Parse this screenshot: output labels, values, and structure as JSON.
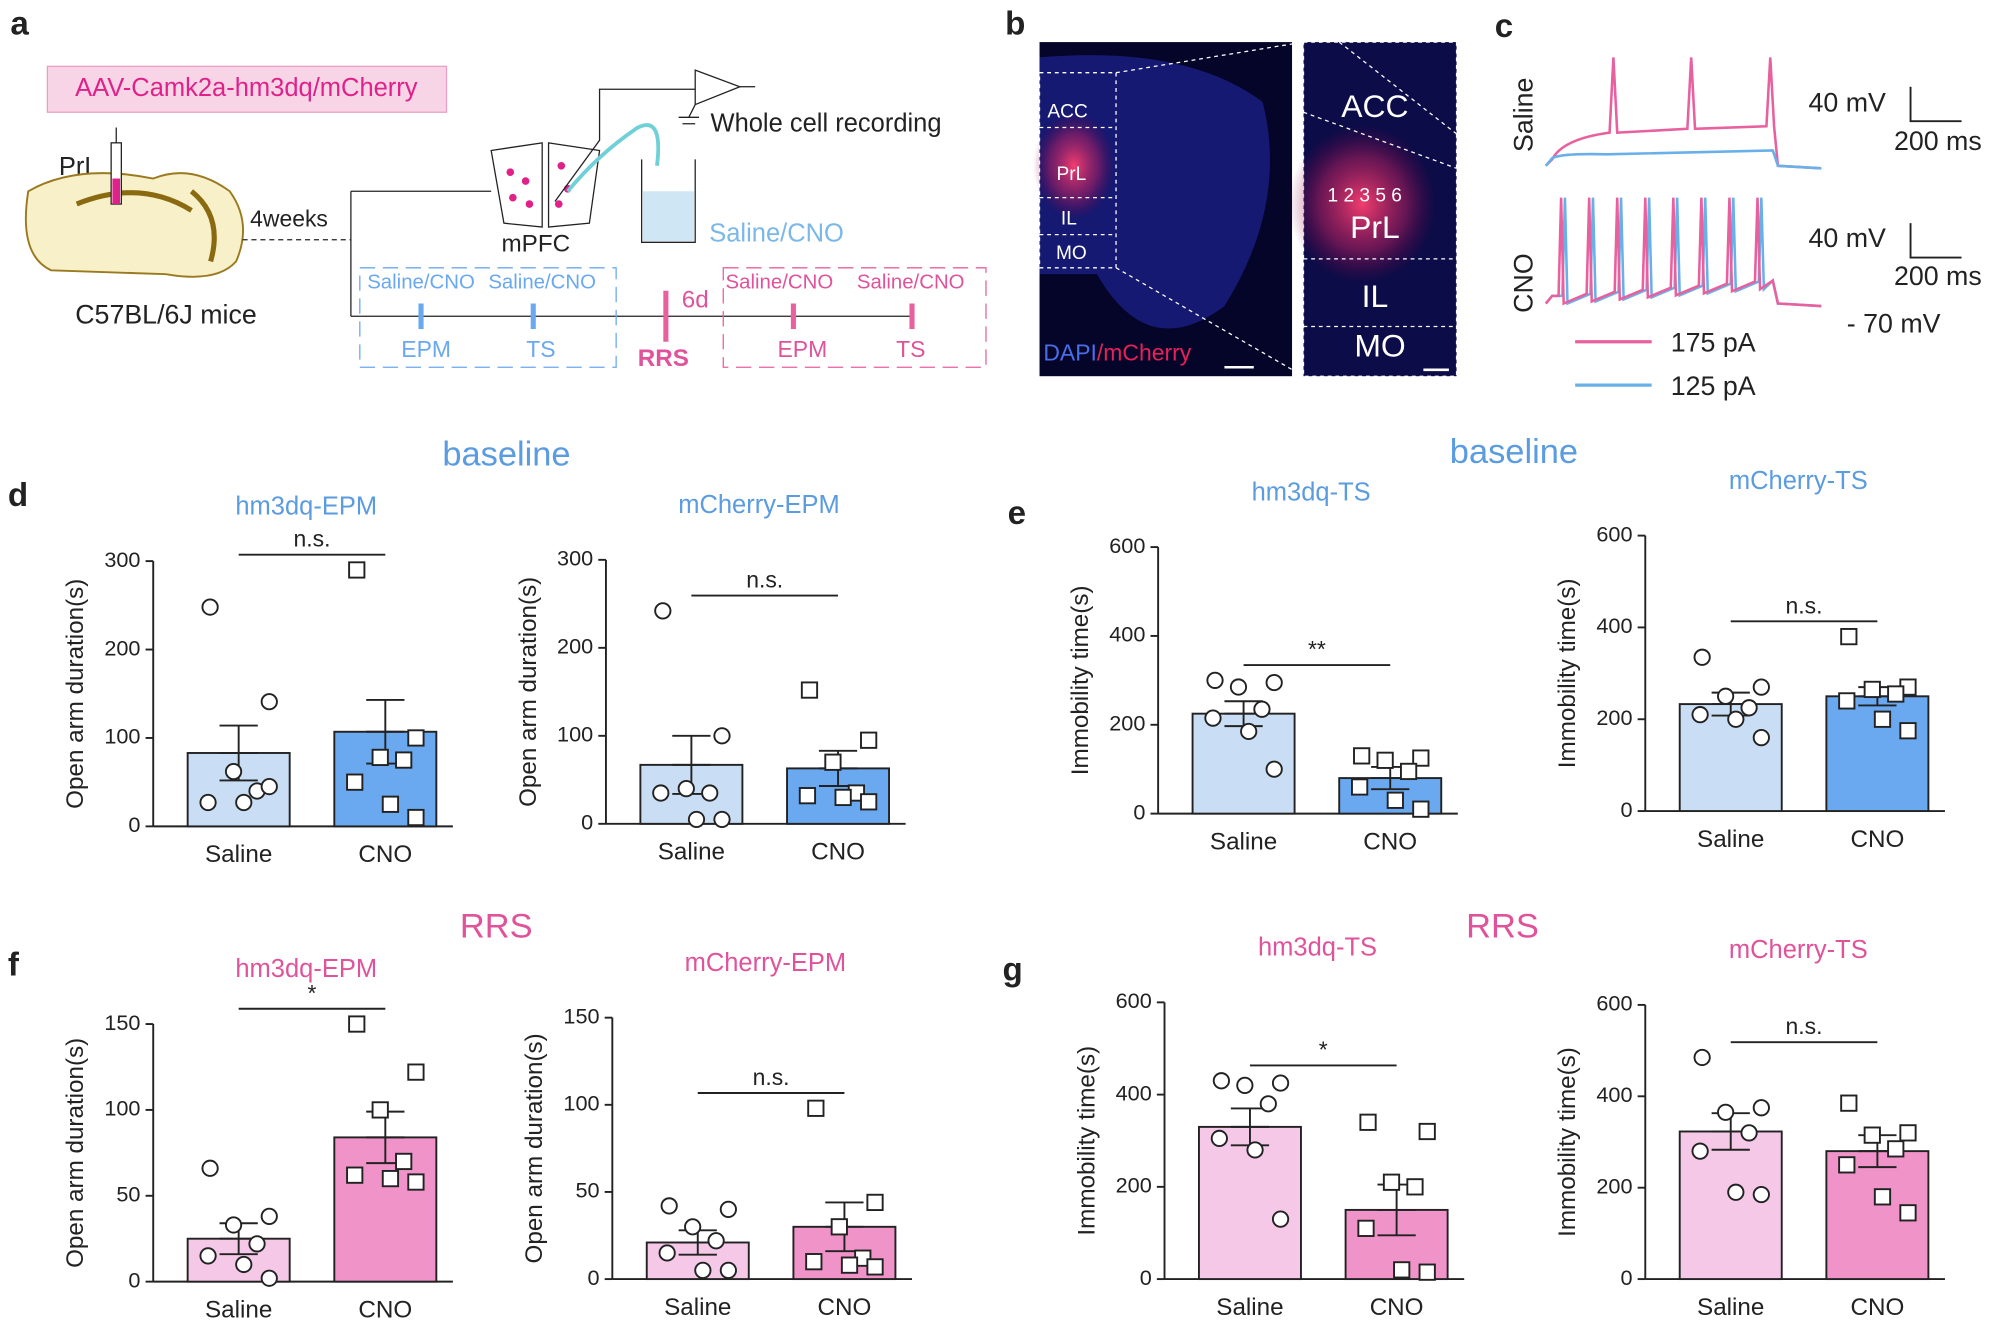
{
  "panel_labels": {
    "a": "a",
    "b": "b",
    "c": "c",
    "d": "d",
    "e": "e",
    "f": "f",
    "g": "g"
  },
  "sections": {
    "d": "baseline",
    "e": "baseline",
    "f": "RRS",
    "g": "RRS"
  },
  "panel_a": {
    "virus": "AAV-Camk2a-hm3dq/mCherry",
    "region": "PrL",
    "interval": "4weeks",
    "mice": "C57BL/6J mice",
    "slice": "mPFC",
    "recording": "Whole cell recording",
    "perfusion": "Saline/CNO",
    "baseline_treatments": [
      "Saline/CNO",
      "Saline/CNO"
    ],
    "baseline_tests": [
      "EPM",
      "TS"
    ],
    "gap": "6d",
    "stress": "RRS",
    "rrs_treatments": [
      "Saline/CNO",
      "Saline/CNO"
    ],
    "rrs_tests": [
      "EPM",
      "TS"
    ]
  },
  "panel_b": {
    "regions": [
      "ACC",
      "PrL",
      "IL",
      "MO"
    ],
    "inset_regions": [
      "ACC",
      "PrL",
      "IL",
      "MO"
    ],
    "layers": "1 2 3 5 6",
    "stain_dapi": "DAPI",
    "stain_mcherry": "/mCherry"
  },
  "panel_c": {
    "conditions": [
      "Saline",
      "CNO"
    ],
    "scale_voltage": [
      "40 mV",
      "40 mV"
    ],
    "scale_time": [
      "200 ms",
      "200 ms"
    ],
    "currents": [
      {
        "label": "175 pA",
        "color": "#e8609e"
      },
      {
        "label": "125 pA",
        "color": "#6ab0e8"
      }
    ],
    "resting": "- 70 mV"
  },
  "chart_data": [
    {
      "type": "bar",
      "title": "hm3dq-EPM",
      "ylabel": "Open arm duration(s)",
      "categories": [
        "Saline",
        "CNO"
      ],
      "values": [
        83,
        107
      ],
      "errors": [
        31,
        36
      ],
      "points": [
        [
          248,
          141,
          62,
          40,
          27,
          27,
          45
        ],
        [
          290,
          100,
          78,
          75,
          50,
          25,
          10
        ]
      ],
      "colors": [
        "#c9def5",
        "#6aa8f0"
      ],
      "title_color": "#5b9be0",
      "ylim": [
        0,
        300
      ],
      "yticks": [
        0,
        100,
        200,
        300
      ],
      "significance": "n.s."
    },
    {
      "type": "bar",
      "title": "mCherry-EPM",
      "ylabel": "Open arm duration(s)",
      "categories": [
        "Saline",
        "CNO"
      ],
      "values": [
        67,
        63
      ],
      "errors": [
        33,
        20
      ],
      "points": [
        [
          242,
          100,
          40,
          35,
          35,
          5,
          5
        ],
        [
          152,
          95,
          70,
          35,
          32,
          30,
          25
        ]
      ],
      "colors": [
        "#c9def5",
        "#6aa8f0"
      ],
      "title_color": "#5b9be0",
      "ylim": [
        0,
        300
      ],
      "yticks": [
        0,
        100,
        200,
        300
      ],
      "significance": "n.s."
    },
    {
      "type": "bar",
      "title": "hm3dq-TS",
      "ylabel": "Immobility time(s)",
      "categories": [
        "Saline",
        "CNO"
      ],
      "values": [
        225,
        80
      ],
      "errors": [
        28,
        25
      ],
      "points": [
        [
          300,
          295,
          285,
          235,
          215,
          185,
          100
        ],
        [
          130,
          125,
          120,
          95,
          60,
          30,
          10
        ]
      ],
      "colors": [
        "#c9def5",
        "#6aa8f0"
      ],
      "title_color": "#5b9be0",
      "ylim": [
        0,
        600
      ],
      "yticks": [
        0,
        200,
        400,
        600
      ],
      "significance": "**"
    },
    {
      "type": "bar",
      "title": "mCherry-TS",
      "ylabel": "Immobility time(s)",
      "categories": [
        "Saline",
        "CNO"
      ],
      "values": [
        233,
        250
      ],
      "errors": [
        25,
        20
      ],
      "points": [
        [
          335,
          270,
          250,
          225,
          210,
          200,
          160
        ],
        [
          380,
          270,
          265,
          255,
          240,
          200,
          175
        ]
      ],
      "colors": [
        "#c9def5",
        "#6aa8f0"
      ],
      "title_color": "#5b9be0",
      "ylim": [
        0,
        600
      ],
      "yticks": [
        0,
        200,
        400,
        600
      ],
      "significance": "n.s."
    },
    {
      "type": "bar",
      "title": "hm3dq-EPM",
      "ylabel": "Open arm duration(s)",
      "categories": [
        "Saline",
        "CNO"
      ],
      "values": [
        25,
        84
      ],
      "errors": [
        9,
        15
      ],
      "points": [
        [
          66,
          38,
          33,
          22,
          15,
          10,
          2
        ],
        [
          150,
          122,
          100,
          70,
          62,
          60,
          58
        ]
      ],
      "colors": [
        "#f5c8e8",
        "#ef93c8"
      ],
      "title_color": "#e0539a",
      "ylim": [
        0,
        150
      ],
      "yticks": [
        0,
        50,
        100,
        150
      ],
      "significance": "*"
    },
    {
      "type": "bar",
      "title": "mCherry-EPM",
      "ylabel": "Open arm duration(s)",
      "categories": [
        "Saline",
        "CNO"
      ],
      "values": [
        21,
        30
      ],
      "errors": [
        7,
        14
      ],
      "points": [
        [
          42,
          40,
          30,
          22,
          15,
          5,
          5
        ],
        [
          98,
          44,
          30,
          12,
          10,
          8,
          7
        ]
      ],
      "colors": [
        "#f5c8e8",
        "#ef93c8"
      ],
      "title_color": "#e0539a",
      "ylim": [
        0,
        150
      ],
      "yticks": [
        0,
        50,
        100,
        150
      ],
      "significance": "n.s."
    },
    {
      "type": "bar",
      "title": "hm3dq-TS",
      "ylabel": "Immobility time(s)",
      "categories": [
        "Saline",
        "CNO"
      ],
      "values": [
        330,
        150
      ],
      "errors": [
        40,
        55
      ],
      "points": [
        [
          430,
          425,
          420,
          380,
          305,
          280,
          130
        ],
        [
          340,
          320,
          210,
          200,
          110,
          20,
          15
        ]
      ],
      "colors": [
        "#f5c8e8",
        "#ef93c8"
      ],
      "title_color": "#e0539a",
      "ylim": [
        0,
        600
      ],
      "yticks": [
        0,
        200,
        400,
        600
      ],
      "significance": "*"
    },
    {
      "type": "bar",
      "title": "mCherry-TS",
      "ylabel": "Immobility time(s)",
      "categories": [
        "Saline",
        "CNO"
      ],
      "values": [
        323,
        280
      ],
      "errors": [
        40,
        35
      ],
      "points": [
        [
          485,
          375,
          365,
          320,
          280,
          190,
          185
        ],
        [
          385,
          320,
          315,
          285,
          250,
          180,
          145
        ]
      ],
      "colors": [
        "#f5c8e8",
        "#ef93c8"
      ],
      "title_color": "#e0539a",
      "ylim": [
        0,
        600
      ],
      "yticks": [
        0,
        200,
        400,
        600
      ],
      "significance": "n.s."
    }
  ]
}
